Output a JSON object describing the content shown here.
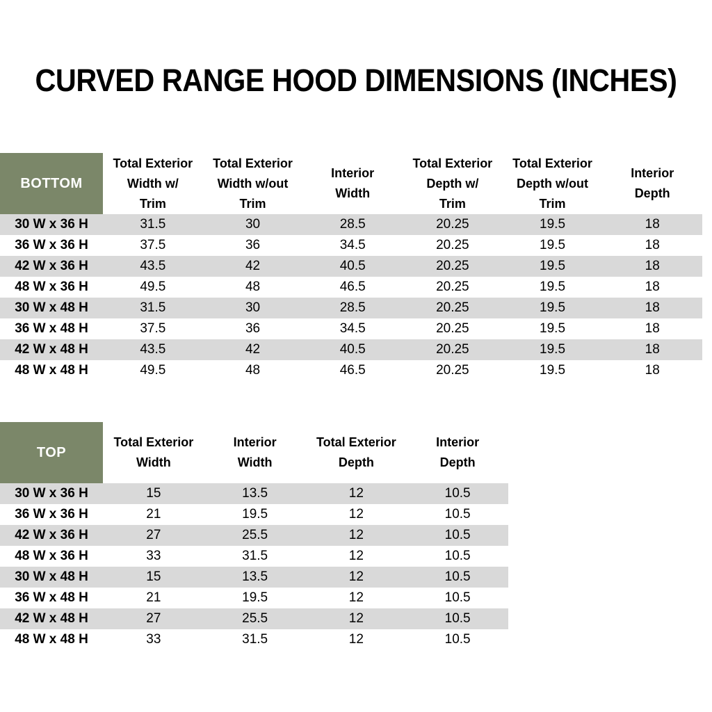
{
  "title": "CURVED RANGE HOOD DIMENSIONS (INCHES)",
  "colors": {
    "header_green": "#7B8769",
    "stripe_gray": "#D9D9D9",
    "header_label_text": "#FFFFFF",
    "body_text": "#000000"
  },
  "bottom_table": {
    "label": "BOTTOM",
    "columns": [
      {
        "label": "Total Exterior Width w/ Trim",
        "lines": [
          "Total Exterior",
          "Width w/",
          "Trim"
        ]
      },
      {
        "label": "Total Exterior Width w/out Trim",
        "lines": [
          "Total Exterior",
          "Width w/out",
          "Trim"
        ]
      },
      {
        "label": "Interior Width",
        "lines": [
          "Interior",
          "Width"
        ]
      },
      {
        "label": "Total Exterior Depth w/ Trim",
        "lines": [
          "Total Exterior",
          "Depth w/",
          "Trim"
        ]
      },
      {
        "label": "Total Exterior Depth w/out Trim",
        "lines": [
          "Total Exterior",
          "Depth w/out",
          "Trim"
        ]
      },
      {
        "label": "Interior Depth",
        "lines": [
          "Interior",
          "Depth"
        ]
      }
    ],
    "rows": [
      {
        "size": "30 W x 36 H",
        "values": [
          "31.5",
          "30",
          "28.5",
          "20.25",
          "19.5",
          "18"
        ]
      },
      {
        "size": "36 W x 36 H",
        "values": [
          "37.5",
          "36",
          "34.5",
          "20.25",
          "19.5",
          "18"
        ]
      },
      {
        "size": "42 W x 36 H",
        "values": [
          "43.5",
          "42",
          "40.5",
          "20.25",
          "19.5",
          "18"
        ]
      },
      {
        "size": "48 W x 36 H",
        "values": [
          "49.5",
          "48",
          "46.5",
          "20.25",
          "19.5",
          "18"
        ]
      },
      {
        "size": "30 W x 48 H",
        "values": [
          "31.5",
          "30",
          "28.5",
          "20.25",
          "19.5",
          "18"
        ]
      },
      {
        "size": "36 W x 48 H",
        "values": [
          "37.5",
          "36",
          "34.5",
          "20.25",
          "19.5",
          "18"
        ]
      },
      {
        "size": "42 W x 48 H",
        "values": [
          "43.5",
          "42",
          "40.5",
          "20.25",
          "19.5",
          "18"
        ]
      },
      {
        "size": "48 W x 48 H",
        "values": [
          "49.5",
          "48",
          "46.5",
          "20.25",
          "19.5",
          "18"
        ]
      }
    ]
  },
  "top_table": {
    "label": "TOP",
    "columns": [
      {
        "label": "Total Exterior Width",
        "lines": [
          "Total Exterior",
          "Width"
        ]
      },
      {
        "label": "Interior Width",
        "lines": [
          "Interior",
          "Width"
        ]
      },
      {
        "label": "Total Exterior Depth",
        "lines": [
          "Total Exterior",
          "Depth"
        ]
      },
      {
        "label": "Interior Depth",
        "lines": [
          "Interior",
          "Depth"
        ]
      }
    ],
    "rows": [
      {
        "size": "30 W x 36 H",
        "values": [
          "15",
          "13.5",
          "12",
          "10.5"
        ]
      },
      {
        "size": "36 W x 36 H",
        "values": [
          "21",
          "19.5",
          "12",
          "10.5"
        ]
      },
      {
        "size": "42 W x 36 H",
        "values": [
          "27",
          "25.5",
          "12",
          "10.5"
        ]
      },
      {
        "size": "48 W x 36 H",
        "values": [
          "33",
          "31.5",
          "12",
          "10.5"
        ]
      },
      {
        "size": "30 W x 48 H",
        "values": [
          "15",
          "13.5",
          "12",
          "10.5"
        ]
      },
      {
        "size": "36 W x 48 H",
        "values": [
          "21",
          "19.5",
          "12",
          "10.5"
        ]
      },
      {
        "size": "42 W x 48 H",
        "values": [
          "27",
          "25.5",
          "12",
          "10.5"
        ]
      },
      {
        "size": "48 W x 48 H",
        "values": [
          "33",
          "31.5",
          "12",
          "10.5"
        ]
      }
    ]
  }
}
